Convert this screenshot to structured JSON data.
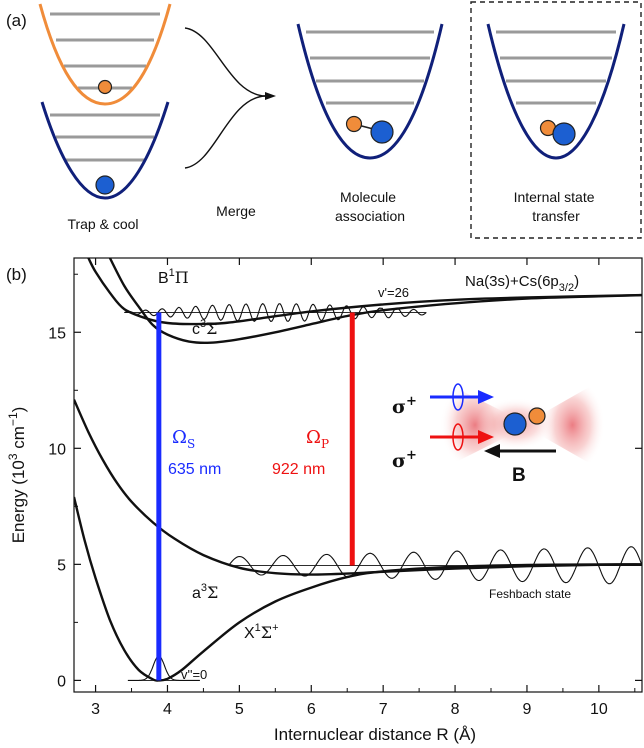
{
  "panel_a": {
    "label": "(a)",
    "steps": [
      {
        "name": "trap",
        "caption_lines": [
          "Trap & cool"
        ]
      },
      {
        "name": "merge",
        "caption_lines": [
          "Merge"
        ]
      },
      {
        "name": "association",
        "caption_lines": [
          "Molecule",
          "association"
        ]
      },
      {
        "name": "transfer",
        "caption_lines": [
          "Internal state",
          "transfer"
        ]
      }
    ],
    "colors": {
      "na": "#f08c3a",
      "cs": "#1c5fd1",
      "trap_na": "#f08c3a",
      "trap_cs": "#10207a",
      "level": "#9a9a9a"
    }
  },
  "panel_b": {
    "label": "(b)",
    "asymptote": "Na(3s)+Cs(6p",
    "asymptote_sub": "3/2",
    "asymptote_end": ")",
    "curves": {
      "b1pi": {
        "base": "B",
        "sup": "1",
        "sym": "Π"
      },
      "c3sigma": {
        "base": "c",
        "sup": "3",
        "sym": "Σ"
      },
      "a3sigma": {
        "base": "a",
        "sup": "3",
        "sym": "Σ"
      },
      "x1sigma": {
        "base": "X",
        "sup": "1",
        "sym": "Σ",
        "sup2": "+"
      }
    },
    "levels": {
      "v_prime": "v'=26",
      "v_double_prime": "v''=0",
      "feshbach": "Feshbach state"
    },
    "lasers": {
      "stokes": {
        "symbol": "Ω",
        "sub": "S",
        "wavelength": "635 nm",
        "color": "#1a2bff",
        "x": 3.88
      },
      "pump": {
        "symbol": "Ω",
        "sub": "P",
        "wavelength": "922 nm",
        "color": "#ee1111",
        "x": 6.57
      }
    },
    "inset": {
      "sigma1": "σ",
      "sigma_sup1": "+",
      "sigma2": "σ",
      "sigma_sup2": "+",
      "field": "B"
    },
    "chart_data": {
      "type": "line",
      "xlabel": "Internuclear distance R (Å)",
      "ylabel_base": "Energy (10",
      "ylabel_sup1": "3",
      "ylabel_mid": " cm",
      "ylabel_sup2": "−1",
      "ylabel_end": ")",
      "xlim": [
        2.7,
        10.6
      ],
      "ylim": [
        -0.5,
        18.2
      ],
      "xticks": [
        3,
        4,
        5,
        6,
        7,
        8,
        9,
        10
      ],
      "yticks": [
        0,
        5,
        10,
        15
      ],
      "series": [
        {
          "name": "X1Σ+",
          "x": [
            2.7,
            2.85,
            3.0,
            3.2,
            3.4,
            3.6,
            3.8,
            3.88,
            4.0,
            4.2,
            4.5,
            5.0,
            5.5,
            6.0,
            6.5,
            7.0,
            8.0,
            9.0,
            10.0,
            10.6
          ],
          "y": [
            7.9,
            6.0,
            4.4,
            2.6,
            1.3,
            0.45,
            0.04,
            0.0,
            0.07,
            0.45,
            1.25,
            2.5,
            3.4,
            4.0,
            4.45,
            4.7,
            4.9,
            4.97,
            5.0,
            5.0
          ]
        },
        {
          "name": "a3Σ",
          "x": [
            2.7,
            2.9,
            3.1,
            3.3,
            3.5,
            3.8,
            4.1,
            4.5,
            5.0,
            5.5,
            6.0,
            6.5,
            7.0,
            8.0,
            9.0,
            10.0,
            10.6
          ],
          "y": [
            12.1,
            10.7,
            9.5,
            8.5,
            7.7,
            6.8,
            6.1,
            5.4,
            4.85,
            4.62,
            4.56,
            4.6,
            4.68,
            4.82,
            4.92,
            4.98,
            5.0
          ]
        },
        {
          "name": "c3Σ",
          "x": [
            3.2,
            3.4,
            3.6,
            3.8,
            4.0,
            4.3,
            4.6,
            5.0,
            5.5,
            6.0,
            6.5,
            7.0,
            8.0,
            9.0,
            10.0,
            10.6
          ],
          "y": [
            18.2,
            17.0,
            16.1,
            15.3,
            14.9,
            14.6,
            14.55,
            14.7,
            15.0,
            15.35,
            15.7,
            15.95,
            16.25,
            16.45,
            16.55,
            16.6
          ]
        },
        {
          "name": "B1Π",
          "x": [
            2.9,
            3.0,
            3.2,
            3.4,
            3.7,
            4.0,
            4.4,
            4.8,
            5.3,
            6.0,
            7.0,
            8.0,
            9.0,
            10.6
          ],
          "y": [
            18.2,
            17.6,
            16.7,
            16.0,
            15.6,
            15.4,
            15.35,
            15.4,
            15.6,
            15.9,
            16.2,
            16.4,
            16.5,
            16.6
          ]
        }
      ]
    }
  }
}
